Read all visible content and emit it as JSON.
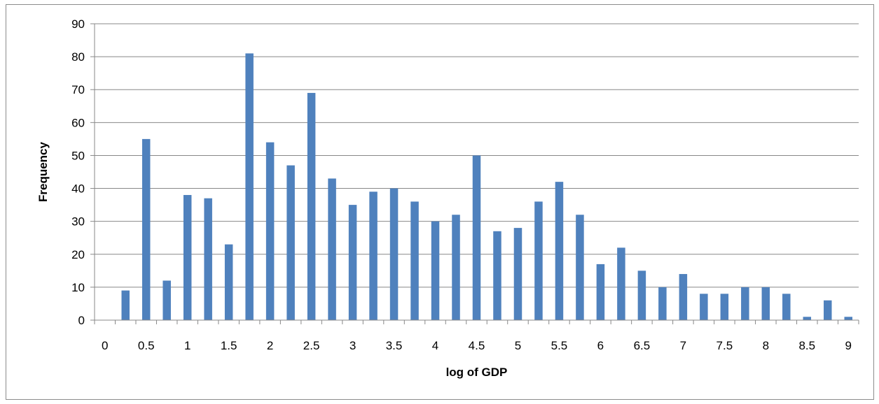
{
  "chart_data": {
    "type": "bar",
    "xlabel": "log of GDP",
    "ylabel": "Frequency",
    "ylim": [
      0,
      90
    ],
    "y_ticks": [
      "0",
      "10",
      "20",
      "30",
      "40",
      "50",
      "60",
      "70",
      "80",
      "90"
    ],
    "x_tick_labels": [
      "0",
      "0.5",
      "1",
      "1.5",
      "2",
      "2.5",
      "3",
      "3.5",
      "4",
      "4.5",
      "5",
      "5.5",
      "6",
      "6.5",
      "7",
      "7.5",
      "8",
      "8.5",
      "9"
    ],
    "categories": [
      "0",
      "0.25",
      "0.5",
      "0.75",
      "1",
      "1.25",
      "1.5",
      "1.75",
      "2",
      "2.25",
      "2.5",
      "2.75",
      "3",
      "3.25",
      "3.5",
      "3.75",
      "4",
      "4.25",
      "4.5",
      "4.75",
      "5",
      "5.25",
      "5.5",
      "5.75",
      "6",
      "6.25",
      "6.5",
      "6.75",
      "7",
      "7.25",
      "7.5",
      "7.75",
      "8",
      "8.25",
      "8.5",
      "8.75",
      "9"
    ],
    "values": [
      0,
      9,
      55,
      12,
      38,
      37,
      23,
      81,
      54,
      47,
      69,
      43,
      35,
      39,
      40,
      36,
      30,
      32,
      50,
      27,
      28,
      36,
      42,
      32,
      17,
      22,
      15,
      10,
      14,
      8,
      8,
      10,
      10,
      8,
      1,
      6,
      1
    ],
    "bar_color": "#4f81bd",
    "grid": true,
    "legend": false
  }
}
